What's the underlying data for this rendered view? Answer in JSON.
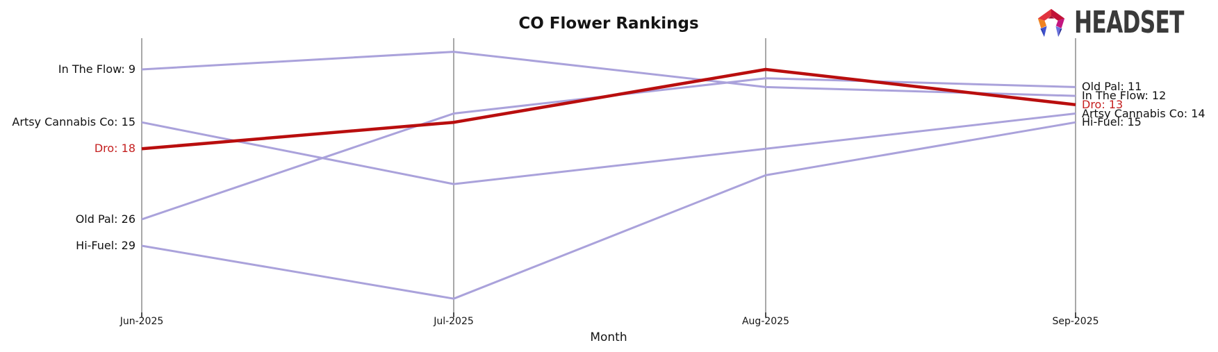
{
  "logo": {
    "text": "HEADSET",
    "icon": "headset-faceted-pentagon"
  },
  "chart_data": {
    "type": "line",
    "subtype": "bump-ranking-chart",
    "title": "CO Flower Rankings",
    "xlabel": "Month",
    "x_categories": [
      "Jun-2025",
      "Jul-2025",
      "Aug-2025",
      "Sep-2025"
    ],
    "y_axis": "brand rank (1 = best), axis inverted so lower rank is higher on screen",
    "y_range_visible": [
      6,
      36
    ],
    "grid": "one vertical gray axis line per month, no horizontal gridlines",
    "legend": "none - series labeled at line endpoints",
    "axis_color": "#a8a8a8",
    "tick_color": "#111111",
    "line_color_default": "#aaa2db",
    "line_color_highlight": "#b90e0e",
    "highlight_text_color": "#c41f1f",
    "series": [
      {
        "name": "In The Flow",
        "values": [
          9,
          7,
          11,
          12
        ],
        "color": "#aaa2db",
        "highlight": false
      },
      {
        "name": "Artsy Cannabis Co",
        "values": [
          15,
          22,
          18,
          14
        ],
        "color": "#aaa2db",
        "highlight": false
      },
      {
        "name": "Old Pal",
        "values": [
          26,
          14,
          10,
          11
        ],
        "color": "#aaa2db",
        "highlight": false
      },
      {
        "name": "Hi-Fuel",
        "values": [
          29,
          35,
          21,
          15
        ],
        "color": "#aaa2db",
        "highlight": false
      },
      {
        "name": "Dro",
        "values": [
          18,
          15,
          9,
          13
        ],
        "color": "#b90e0e",
        "highlight": true
      }
    ],
    "start_labels": [
      {
        "text": "In The Flow: 9",
        "rank": 9,
        "highlight": false
      },
      {
        "text": "Artsy Cannabis Co: 15",
        "rank": 15,
        "highlight": false
      },
      {
        "text": "Dro: 18",
        "rank": 18,
        "highlight": true
      },
      {
        "text": "Old Pal: 26",
        "rank": 26,
        "highlight": false
      },
      {
        "text": "Hi-Fuel: 29",
        "rank": 29,
        "highlight": false
      }
    ],
    "end_labels": [
      {
        "text": "Old Pal: 11",
        "rank": 11,
        "highlight": false
      },
      {
        "text": "In The Flow: 12",
        "rank": 12,
        "highlight": false
      },
      {
        "text": "Dro: 13",
        "rank": 13,
        "highlight": true
      },
      {
        "text": "Artsy Cannabis Co: 14",
        "rank": 14,
        "highlight": false
      },
      {
        "text": "Hi-Fuel: 15",
        "rank": 15,
        "highlight": false
      }
    ]
  }
}
